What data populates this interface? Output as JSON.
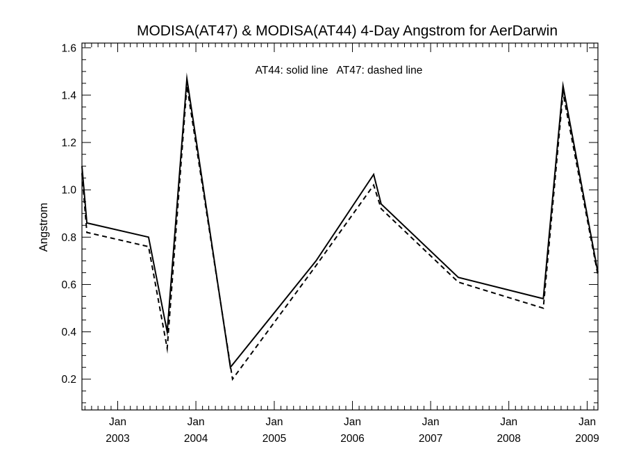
{
  "chart_data": {
    "type": "line",
    "title": "MODISA(AT47) & MODISA(AT44) 4-Day Angstrom for AerDarwin",
    "xlabel": "",
    "ylabel": "Angstrom",
    "annotation": "AT44: solid line   AT47: dashed line",
    "xlim": [
      "2002-07-18",
      "2009-02-20"
    ],
    "ylim": [
      0.07,
      1.62
    ],
    "yticks": [
      "0.2",
      "0.4",
      "0.6",
      "0.8",
      "1.0",
      "1.2",
      "1.4",
      "1.6"
    ],
    "xticks": [
      {
        "date": "2003-01-01",
        "month": "Jan",
        "year": "2003"
      },
      {
        "date": "2004-01-01",
        "month": "Jan",
        "year": "2004"
      },
      {
        "date": "2005-01-01",
        "month": "Jan",
        "year": "2005"
      },
      {
        "date": "2006-01-01",
        "month": "Jan",
        "year": "2006"
      },
      {
        "date": "2007-01-01",
        "month": "Jan",
        "year": "2007"
      },
      {
        "date": "2008-01-01",
        "month": "Jan",
        "year": "2008"
      },
      {
        "date": "2009-01-01",
        "month": "Jan",
        "year": "2009"
      }
    ],
    "grid": false,
    "legend": "none",
    "series": [
      {
        "name": "AT44",
        "style": "solid",
        "color": "#000000",
        "points": [
          [
            "2002-07-18",
            1.1
          ],
          [
            "2002-08-10",
            0.86
          ],
          [
            "2003-05-25",
            0.8
          ],
          [
            "2003-08-20",
            0.4
          ],
          [
            "2003-11-20",
            1.47
          ],
          [
            "2004-06-10",
            0.25
          ],
          [
            "2005-07-15",
            0.7
          ],
          [
            "2006-04-10",
            1.065
          ],
          [
            "2006-05-15",
            0.94
          ],
          [
            "2007-05-10",
            0.63
          ],
          [
            "2008-06-10",
            0.54
          ],
          [
            "2008-09-10",
            1.44
          ],
          [
            "2009-02-20",
            0.65
          ]
        ]
      },
      {
        "name": "AT47",
        "style": "dashed",
        "color": "#000000",
        "points": [
          [
            "2002-07-18",
            1.07
          ],
          [
            "2002-08-10",
            0.82
          ],
          [
            "2003-05-25",
            0.76
          ],
          [
            "2003-08-20",
            0.33
          ],
          [
            "2003-11-20",
            1.44
          ],
          [
            "2004-06-20",
            0.2
          ],
          [
            "2005-07-15",
            0.68
          ],
          [
            "2006-04-10",
            1.02
          ],
          [
            "2006-05-15",
            0.92
          ],
          [
            "2007-05-10",
            0.61
          ],
          [
            "2008-06-10",
            0.5
          ],
          [
            "2008-09-10",
            1.41
          ],
          [
            "2009-02-20",
            0.64
          ]
        ]
      }
    ]
  }
}
